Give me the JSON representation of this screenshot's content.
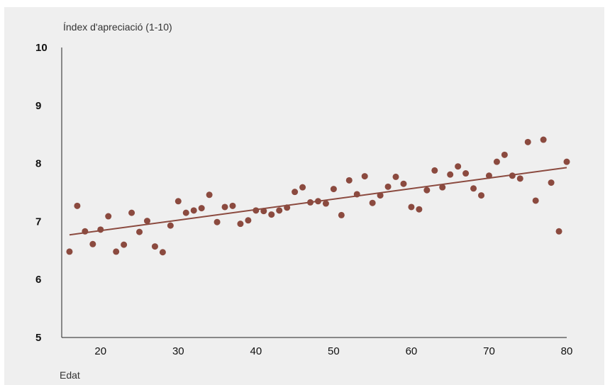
{
  "chart_data": {
    "type": "scatter",
    "ylabel": "Índex d'apreciació (1-10)",
    "xlabel": "Edat",
    "xlim": [
      15,
      80
    ],
    "ylim": [
      5,
      10
    ],
    "x_ticks": [
      20,
      30,
      40,
      50,
      60,
      70,
      80
    ],
    "y_ticks": [
      5,
      6,
      7,
      8,
      9,
      10
    ],
    "grid": false,
    "colors": {
      "points": "#8b4a3f",
      "trend": "#8b4a3f"
    },
    "points": {
      "x": [
        16,
        17,
        18,
        19,
        20,
        21,
        22,
        23,
        24,
        25,
        26,
        27,
        28,
        29,
        30,
        31,
        32,
        33,
        34,
        35,
        36,
        37,
        38,
        39,
        40,
        41,
        42,
        43,
        44,
        45,
        46,
        47,
        48,
        49,
        50,
        51,
        52,
        53,
        54,
        55,
        56,
        57,
        58,
        59,
        60,
        61,
        62,
        63,
        64,
        65,
        66,
        67,
        68,
        69,
        70,
        71,
        72,
        73,
        74,
        75,
        76,
        77,
        78,
        79,
        80
      ],
      "y": [
        6.48,
        7.27,
        6.83,
        6.61,
        6.86,
        7.09,
        6.48,
        6.6,
        7.15,
        6.82,
        7.01,
        6.57,
        6.47,
        6.93,
        7.35,
        7.15,
        7.19,
        7.23,
        7.46,
        6.99,
        7.25,
        7.27,
        6.96,
        7.02,
        7.19,
        7.18,
        7.12,
        7.19,
        7.24,
        7.51,
        7.59,
        7.33,
        7.35,
        7.31,
        7.56,
        7.11,
        7.71,
        7.47,
        7.78,
        7.32,
        7.45,
        7.6,
        7.77,
        7.65,
        7.25,
        7.21,
        7.54,
        7.88,
        7.59,
        7.81,
        7.95,
        7.83,
        7.57,
        7.45,
        7.79,
        8.03,
        8.15,
        7.79,
        7.74,
        8.37,
        7.36,
        8.41,
        7.67,
        6.83,
        8.03
      ]
    },
    "trendline": {
      "x": [
        16,
        80
      ],
      "y": [
        6.77,
        7.93
      ]
    }
  }
}
